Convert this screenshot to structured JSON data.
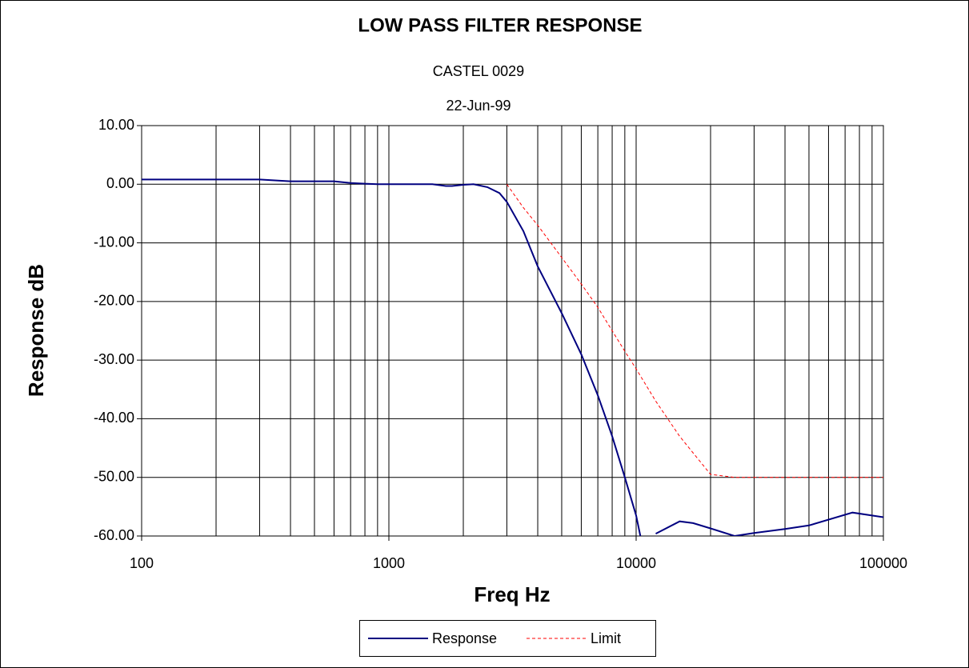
{
  "chart_data": {
    "type": "line",
    "title": "LOW PASS FILTER RESPONSE",
    "subtitle": "CASTEL 0029",
    "date": "22-Jun-99",
    "x_label": "Freq Hz",
    "y_label": "Response dB",
    "xscale": "log",
    "xlim": [
      100,
      100000
    ],
    "xticks": [
      100,
      1000,
      10000,
      100000
    ],
    "xminor_ticks": [
      200,
      300,
      400,
      500,
      600,
      700,
      800,
      900,
      2000,
      3000,
      4000,
      5000,
      6000,
      7000,
      8000,
      9000,
      20000,
      30000,
      40000,
      50000,
      60000,
      70000,
      80000,
      90000
    ],
    "ylim": [
      -60,
      10
    ],
    "yticks": [
      {
        "value": 10,
        "label": "10.00"
      },
      {
        "value": 0,
        "label": "0.00"
      },
      {
        "value": -10,
        "label": "-10.00"
      },
      {
        "value": -20,
        "label": "-20.00"
      },
      {
        "value": -30,
        "label": "-30.00"
      },
      {
        "value": -40,
        "label": "-40.00"
      },
      {
        "value": -50,
        "label": "-50.00"
      },
      {
        "value": -60,
        "label": "-60.00"
      }
    ],
    "grid": true,
    "legend": "bottom",
    "series": [
      {
        "name": "Response",
        "color": "#000080",
        "style": "solid",
        "x": [
          100,
          200,
          300,
          400,
          500,
          600,
          700,
          800,
          900,
          1000,
          1200,
          1500,
          1700,
          1800,
          2000,
          2200,
          2500,
          2800,
          3000,
          3500,
          4000,
          5000,
          6000,
          7000,
          8000,
          9000,
          10000,
          10400,
          11000,
          12000,
          15000,
          17000,
          20000,
          25000,
          30000,
          40000,
          50000,
          75000,
          100000
        ],
        "values": [
          0.8,
          0.8,
          0.8,
          0.5,
          0.5,
          0.5,
          0.2,
          0.1,
          0,
          0,
          0,
          0,
          -0.3,
          -0.3,
          -0.1,
          0,
          -0.5,
          -1.5,
          -3,
          -8,
          -14,
          -22,
          -29,
          -36,
          -43,
          -50,
          -56.5,
          -60,
          null,
          -59.6,
          -57.5,
          -57.8,
          -58.7,
          -60,
          -59.5,
          -58.8,
          -58.2,
          -56,
          -56.8
        ]
      },
      {
        "name": "Limit",
        "color": "#ff0000",
        "style": "dashed",
        "x": [
          3000,
          3500,
          4000,
          5000,
          6000,
          7000,
          8000,
          9000,
          10000,
          12000,
          15000,
          20000,
          25000,
          30000,
          50000,
          100000
        ],
        "values": [
          0,
          -4,
          -7,
          -12.5,
          -17,
          -21,
          -25,
          -28.5,
          -31.5,
          -37,
          -43,
          -49.5,
          -50,
          -50,
          -50,
          -50
        ]
      }
    ]
  }
}
